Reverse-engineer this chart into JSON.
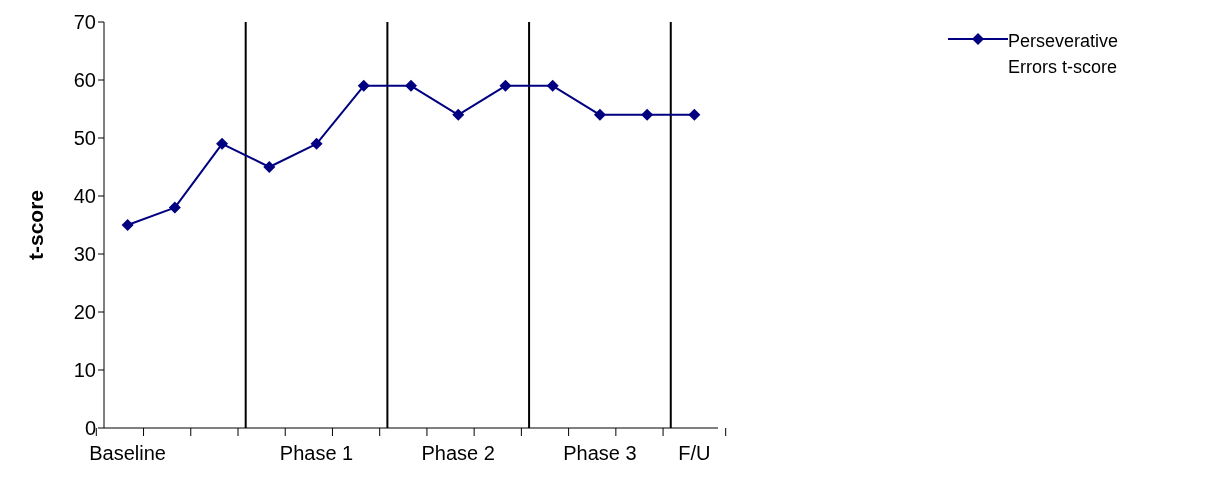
{
  "chart_data": {
    "type": "line",
    "ylabel": "t-score",
    "categories": [
      "Baseline",
      null,
      null,
      null,
      "Phase 1",
      null,
      null,
      "Phase 2",
      null,
      null,
      "Phase 3",
      null,
      "F/U"
    ],
    "series": [
      {
        "name": "Perseverative Errors t-score",
        "color": "#000080",
        "values": [
          35,
          38,
          49,
          45,
          49,
          59,
          59,
          54,
          59,
          59,
          54,
          54,
          54
        ]
      }
    ],
    "ylim": [
      0,
      70
    ],
    "yticks": [
      0,
      10,
      20,
      30,
      40,
      50,
      60,
      70
    ],
    "grid": false,
    "legend": "top right",
    "marker": "diamond",
    "line_style": "solid"
  }
}
